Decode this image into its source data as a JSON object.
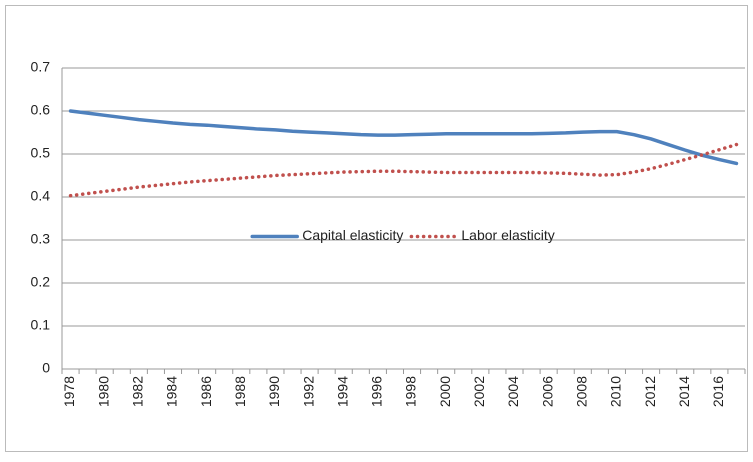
{
  "chart_data": {
    "type": "line",
    "categories": [
      "1978",
      null,
      "1980",
      null,
      "1982",
      null,
      "1984",
      null,
      "1986",
      null,
      "1988",
      null,
      "1990",
      null,
      "1992",
      null,
      "1994",
      null,
      "1996",
      null,
      "1998",
      null,
      "2000",
      null,
      "2002",
      null,
      "2004",
      null,
      "2006",
      null,
      "2008",
      null,
      "2010",
      null,
      "2012",
      null,
      "2014",
      null,
      "2016",
      null
    ],
    "series": [
      {
        "name": "Capital elasticity",
        "color": "#4f81bd",
        "style": "solid",
        "values": [
          0.6,
          0.595,
          0.59,
          0.585,
          0.58,
          0.576,
          0.572,
          0.569,
          0.567,
          0.564,
          0.561,
          0.558,
          0.556,
          0.553,
          0.551,
          0.549,
          0.547,
          0.545,
          0.544,
          0.544,
          0.545,
          0.546,
          0.547,
          0.547,
          0.547,
          0.547,
          0.547,
          0.547,
          0.548,
          0.549,
          0.551,
          0.552,
          0.552,
          0.545,
          0.535,
          0.522,
          0.509,
          0.497,
          0.487,
          0.478
        ]
      },
      {
        "name": "Labor elasticity",
        "color": "#c0504d",
        "style": "dotted",
        "values": [
          0.403,
          0.408,
          0.413,
          0.418,
          0.423,
          0.427,
          0.431,
          0.435,
          0.438,
          0.441,
          0.444,
          0.447,
          0.45,
          0.452,
          0.454,
          0.456,
          0.458,
          0.459,
          0.46,
          0.46,
          0.459,
          0.458,
          0.457,
          0.457,
          0.457,
          0.457,
          0.457,
          0.457,
          0.456,
          0.455,
          0.453,
          0.451,
          0.452,
          0.458,
          0.466,
          0.476,
          0.487,
          0.498,
          0.51,
          0.522
        ]
      }
    ],
    "ylim": [
      0,
      0.7
    ],
    "yticks": [
      0,
      0.1,
      0.2,
      0.3,
      0.4,
      0.5,
      0.6,
      0.7
    ],
    "grid": true,
    "legend": "center"
  }
}
